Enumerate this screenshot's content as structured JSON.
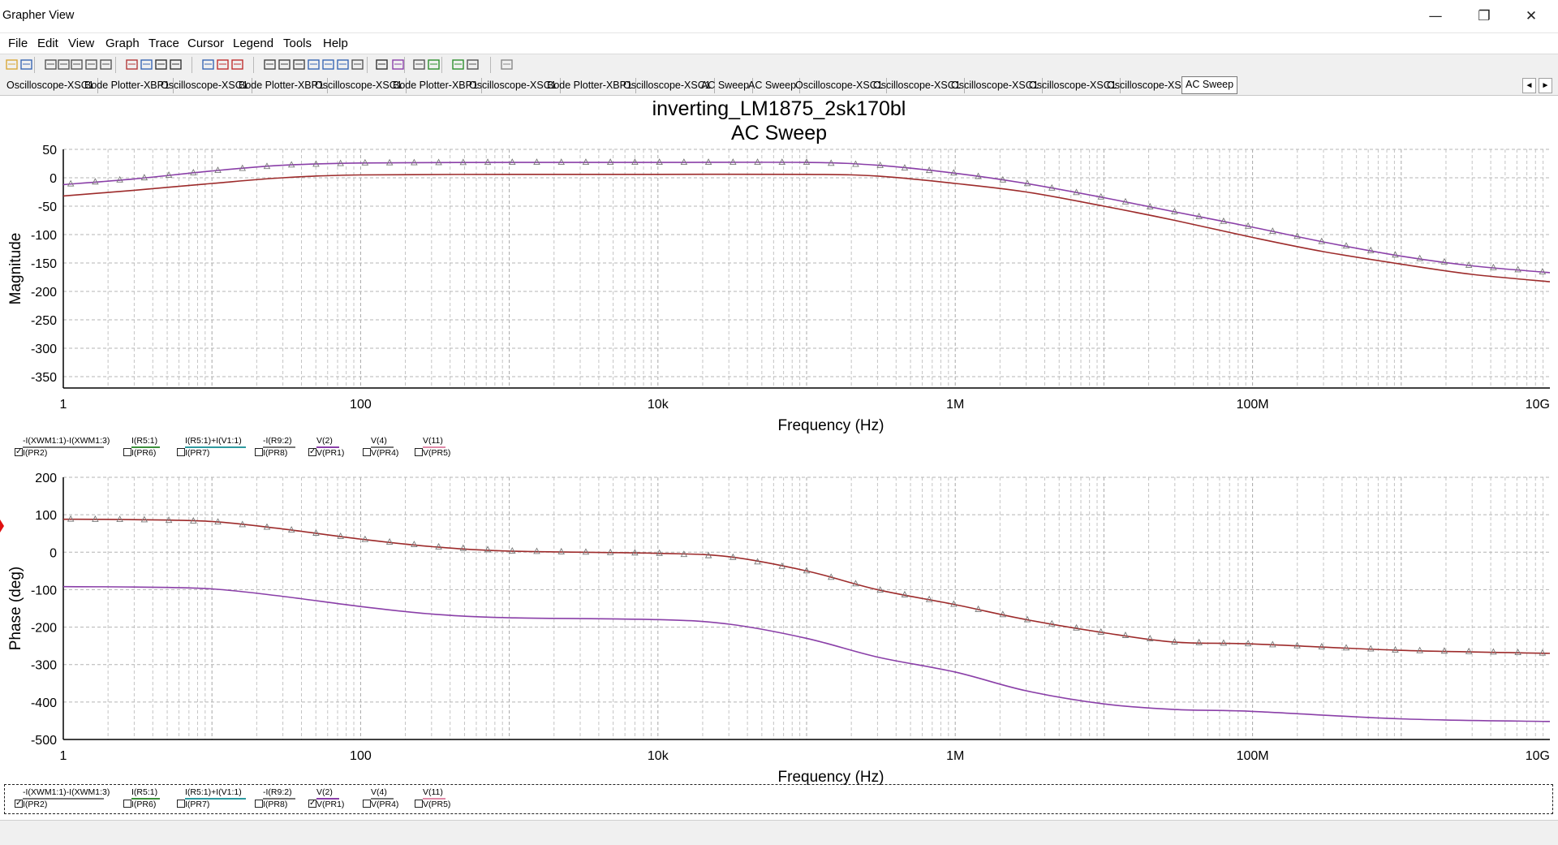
{
  "window": {
    "title": "Grapher View",
    "minimize_glyph": "—",
    "maximize_glyph": "❐",
    "close_glyph": "✕"
  },
  "menu": [
    "File",
    "Edit",
    "View",
    "Graph",
    "Trace",
    "Cursor",
    "Legend",
    "Tools",
    "Help"
  ],
  "toolbar_icons": [
    "open-icon",
    "save-icon",
    "undo-icon",
    "cut-icon",
    "copy-icon",
    "paste-icon",
    "print-icon",
    "grid-icon",
    "show-legend-icon",
    "cursors-icon",
    "export-icon",
    "trace-line-icon",
    "trace-points-icon",
    "trace-marker-icon",
    "zoom-in-icon",
    "zoom-out-icon",
    "zoom-area-icon",
    "zoom-full-icon",
    "zoom-x-icon",
    "zoom-y-icon",
    "pan-icon",
    "text-icon",
    "trace-overlay-icon",
    "grapher-props-icon",
    "export-excel-icon",
    "export-lab-icon",
    "copy-graph-icon",
    "stop-icon"
  ],
  "tabs": [
    {
      "label": "Oscilloscope-XSC1",
      "active": false
    },
    {
      "label": "Bode Plotter-XBP1",
      "active": false
    },
    {
      "label": "Oscilloscope-XSC1",
      "active": false
    },
    {
      "label": "Bode Plotter-XBP1",
      "active": false
    },
    {
      "label": "Oscilloscope-XSC1",
      "active": false
    },
    {
      "label": "Bode Plotter-XBP1",
      "active": false
    },
    {
      "label": "Oscilloscope-XSC1",
      "active": false
    },
    {
      "label": "Bode Plotter-XBP1",
      "active": false
    },
    {
      "label": "Oscilloscope-XSC1",
      "active": false
    },
    {
      "label": "AC Sweep",
      "active": false
    },
    {
      "label": "AC Sweep",
      "active": false
    },
    {
      "label": "Oscilloscope-XSC1",
      "active": false
    },
    {
      "label": "Oscilloscope-XSC1",
      "active": false
    },
    {
      "label": "Oscilloscope-XSC1",
      "active": false
    },
    {
      "label": "Oscilloscope-XSC1",
      "active": false
    },
    {
      "label": "Oscilloscope-XSC1",
      "active": false
    },
    {
      "label": "AC Sweep",
      "active": true
    }
  ],
  "tab_scroll": {
    "left": "◄",
    "right": "►"
  },
  "page": {
    "title": "inverting_LM1875_2sk170bl",
    "subtitle": "AC Sweep"
  },
  "colors": {
    "v2_trace": "#9d2b2b",
    "vpr1_trace": "#8a3fa8",
    "gray_swatch": "#777777",
    "green_swatch": "#3a8f3a",
    "teal_swatch": "#2e9aa0",
    "pink_swatch": "#e08aa8"
  },
  "legend": [
    {
      "top": "-I(XWM1:1)-I(XWM1:3)",
      "bottom": "I(PR2)",
      "checked": true,
      "color": "#777777"
    },
    {
      "top": "I(R5:1)",
      "bottom": "I(PR6)",
      "checked": false,
      "color": "#3a8f3a"
    },
    {
      "top": "I(R5:1)+I(V1:1)",
      "bottom": "I(PR7)",
      "checked": false,
      "color": "#2e9aa0"
    },
    {
      "top": "-I(R9:2)",
      "bottom": "I(PR8)",
      "checked": false,
      "color": "#777777"
    },
    {
      "top": "V(2)",
      "bottom": "V(PR1)",
      "checked": true,
      "color": "#8a3fa8"
    },
    {
      "top": "V(4)",
      "bottom": "V(PR4)",
      "checked": false,
      "color": "#777777"
    },
    {
      "top": "V(11)",
      "bottom": "V(PR5)",
      "checked": false,
      "color": "#e08aa8"
    }
  ],
  "chart_data": [
    {
      "type": "line",
      "title": "inverting_LM1875_2sk170bl",
      "subtitle": "AC Sweep",
      "xlabel": "Frequency (Hz)",
      "ylabel": "Magnitude",
      "xscale": "log",
      "xlim": [
        1,
        10000000000
      ],
      "ylim": [
        -370,
        50
      ],
      "x_ticks": [
        "1",
        "100",
        "10k",
        "1M",
        "100M",
        "10G"
      ],
      "y_ticks": [
        50,
        0,
        -50,
        -100,
        -150,
        -200,
        -250,
        -300,
        -350
      ],
      "grid": true,
      "series": [
        {
          "name": "V(2)",
          "color": "#9d2b2b",
          "markers": false,
          "x": [
            1,
            3,
            10,
            30,
            100,
            1000,
            10000,
            100000,
            300000,
            1000000,
            3000000,
            10000000,
            30000000,
            100000000,
            300000000,
            1000000000,
            3000000000,
            10000000000
          ],
          "y": [
            -32,
            -22,
            -10,
            0,
            5,
            6,
            6,
            6,
            3,
            -10,
            -25,
            -50,
            -75,
            -105,
            -130,
            -152,
            -170,
            -183
          ]
        },
        {
          "name": "V(PR1)",
          "color": "#8a3fa8",
          "markers": true,
          "x": [
            1,
            3,
            10,
            30,
            100,
            1000,
            10000,
            100000,
            300000,
            1000000,
            3000000,
            10000000,
            30000000,
            100000000,
            300000000,
            1000000000,
            3000000000,
            10000000000
          ],
          "y": [
            -12,
            -2,
            12,
            22,
            26,
            27,
            27,
            27,
            22,
            8,
            -10,
            -35,
            -60,
            -87,
            -113,
            -138,
            -155,
            -167
          ]
        }
      ]
    },
    {
      "type": "line",
      "xlabel": "Frequency (Hz)",
      "ylabel": "Phase (deg)",
      "xscale": "log",
      "xlim": [
        1,
        10000000000
      ],
      "ylim": [
        -500,
        200
      ],
      "x_ticks": [
        "1",
        "100",
        "10k",
        "1M",
        "100M",
        "10G"
      ],
      "y_ticks": [
        200,
        100,
        0,
        -100,
        -200,
        -300,
        -400,
        -500
      ],
      "grid": true,
      "series": [
        {
          "name": "V(2)",
          "color": "#9d2b2b",
          "markers": true,
          "x": [
            1,
            3,
            10,
            30,
            100,
            300,
            1000,
            10000,
            30000,
            100000,
            300000,
            1000000,
            3000000,
            10000000,
            30000000,
            100000000,
            1000000000,
            10000000000
          ],
          "y": [
            88,
            87,
            82,
            62,
            35,
            15,
            3,
            -3,
            -12,
            -50,
            -100,
            -140,
            -180,
            -215,
            -240,
            -245,
            -262,
            -270
          ]
        },
        {
          "name": "V(PR1)",
          "color": "#8a3fa8",
          "markers": false,
          "x": [
            1,
            3,
            10,
            30,
            100,
            300,
            1000,
            10000,
            30000,
            100000,
            300000,
            1000000,
            3000000,
            10000000,
            30000000,
            100000000,
            1000000000,
            10000000000
          ],
          "y": [
            -92,
            -93,
            -98,
            -118,
            -145,
            -165,
            -175,
            -180,
            -192,
            -230,
            -280,
            -320,
            -370,
            -405,
            -420,
            -425,
            -445,
            -452
          ]
        }
      ]
    }
  ]
}
